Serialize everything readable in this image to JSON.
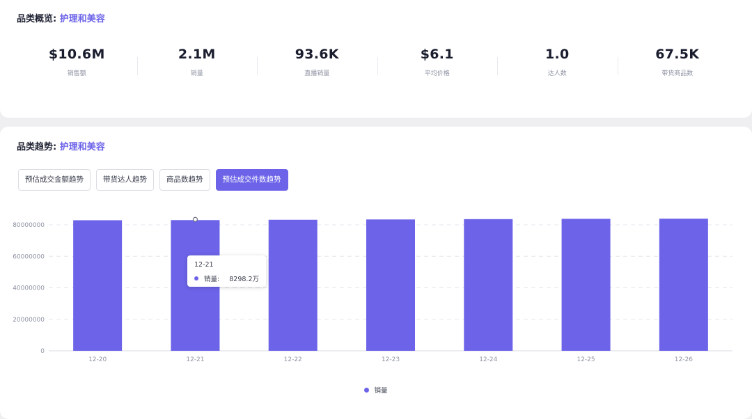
{
  "overview": {
    "title_prefix": "品类概览:",
    "category": "护理和美容",
    "metrics": [
      {
        "value": "$10.6M",
        "label": "销售额"
      },
      {
        "value": "2.1M",
        "label": "销量"
      },
      {
        "value": "93.6K",
        "label": "直播销量"
      },
      {
        "value": "$6.1",
        "label": "平均价格"
      },
      {
        "value": "1.0",
        "label": "达人数"
      },
      {
        "value": "67.5K",
        "label": "带货商品数"
      }
    ]
  },
  "trend": {
    "title_prefix": "品类趋势:",
    "category": "护理和美容",
    "tabs": [
      {
        "label": "预估成交金额趋势",
        "active": false
      },
      {
        "label": "带货达人趋势",
        "active": false
      },
      {
        "label": "商品数趋势",
        "active": false
      },
      {
        "label": "预估成交件数趋势",
        "active": true
      }
    ],
    "tooltip": {
      "date": "12-21",
      "series": "销量:",
      "value": "8298.2万"
    },
    "legend_label": "销量"
  },
  "colors": {
    "accent": "#6c63e8",
    "grid": "#e6e7ec",
    "axis_text": "#8f93a3"
  },
  "chart_data": {
    "type": "bar",
    "categories": [
      "12-20",
      "12-21",
      "12-22",
      "12-23",
      "12-24",
      "12-25",
      "12-26"
    ],
    "series": [
      {
        "name": "销量",
        "values": [
          82900000,
          82982000,
          83200000,
          83400000,
          83600000,
          83800000,
          83900000
        ]
      }
    ],
    "ylim": [
      0,
      80000000
    ],
    "yticks": [
      0,
      20000000,
      40000000,
      60000000,
      80000000
    ],
    "grid": true,
    "legend": "bottom"
  }
}
